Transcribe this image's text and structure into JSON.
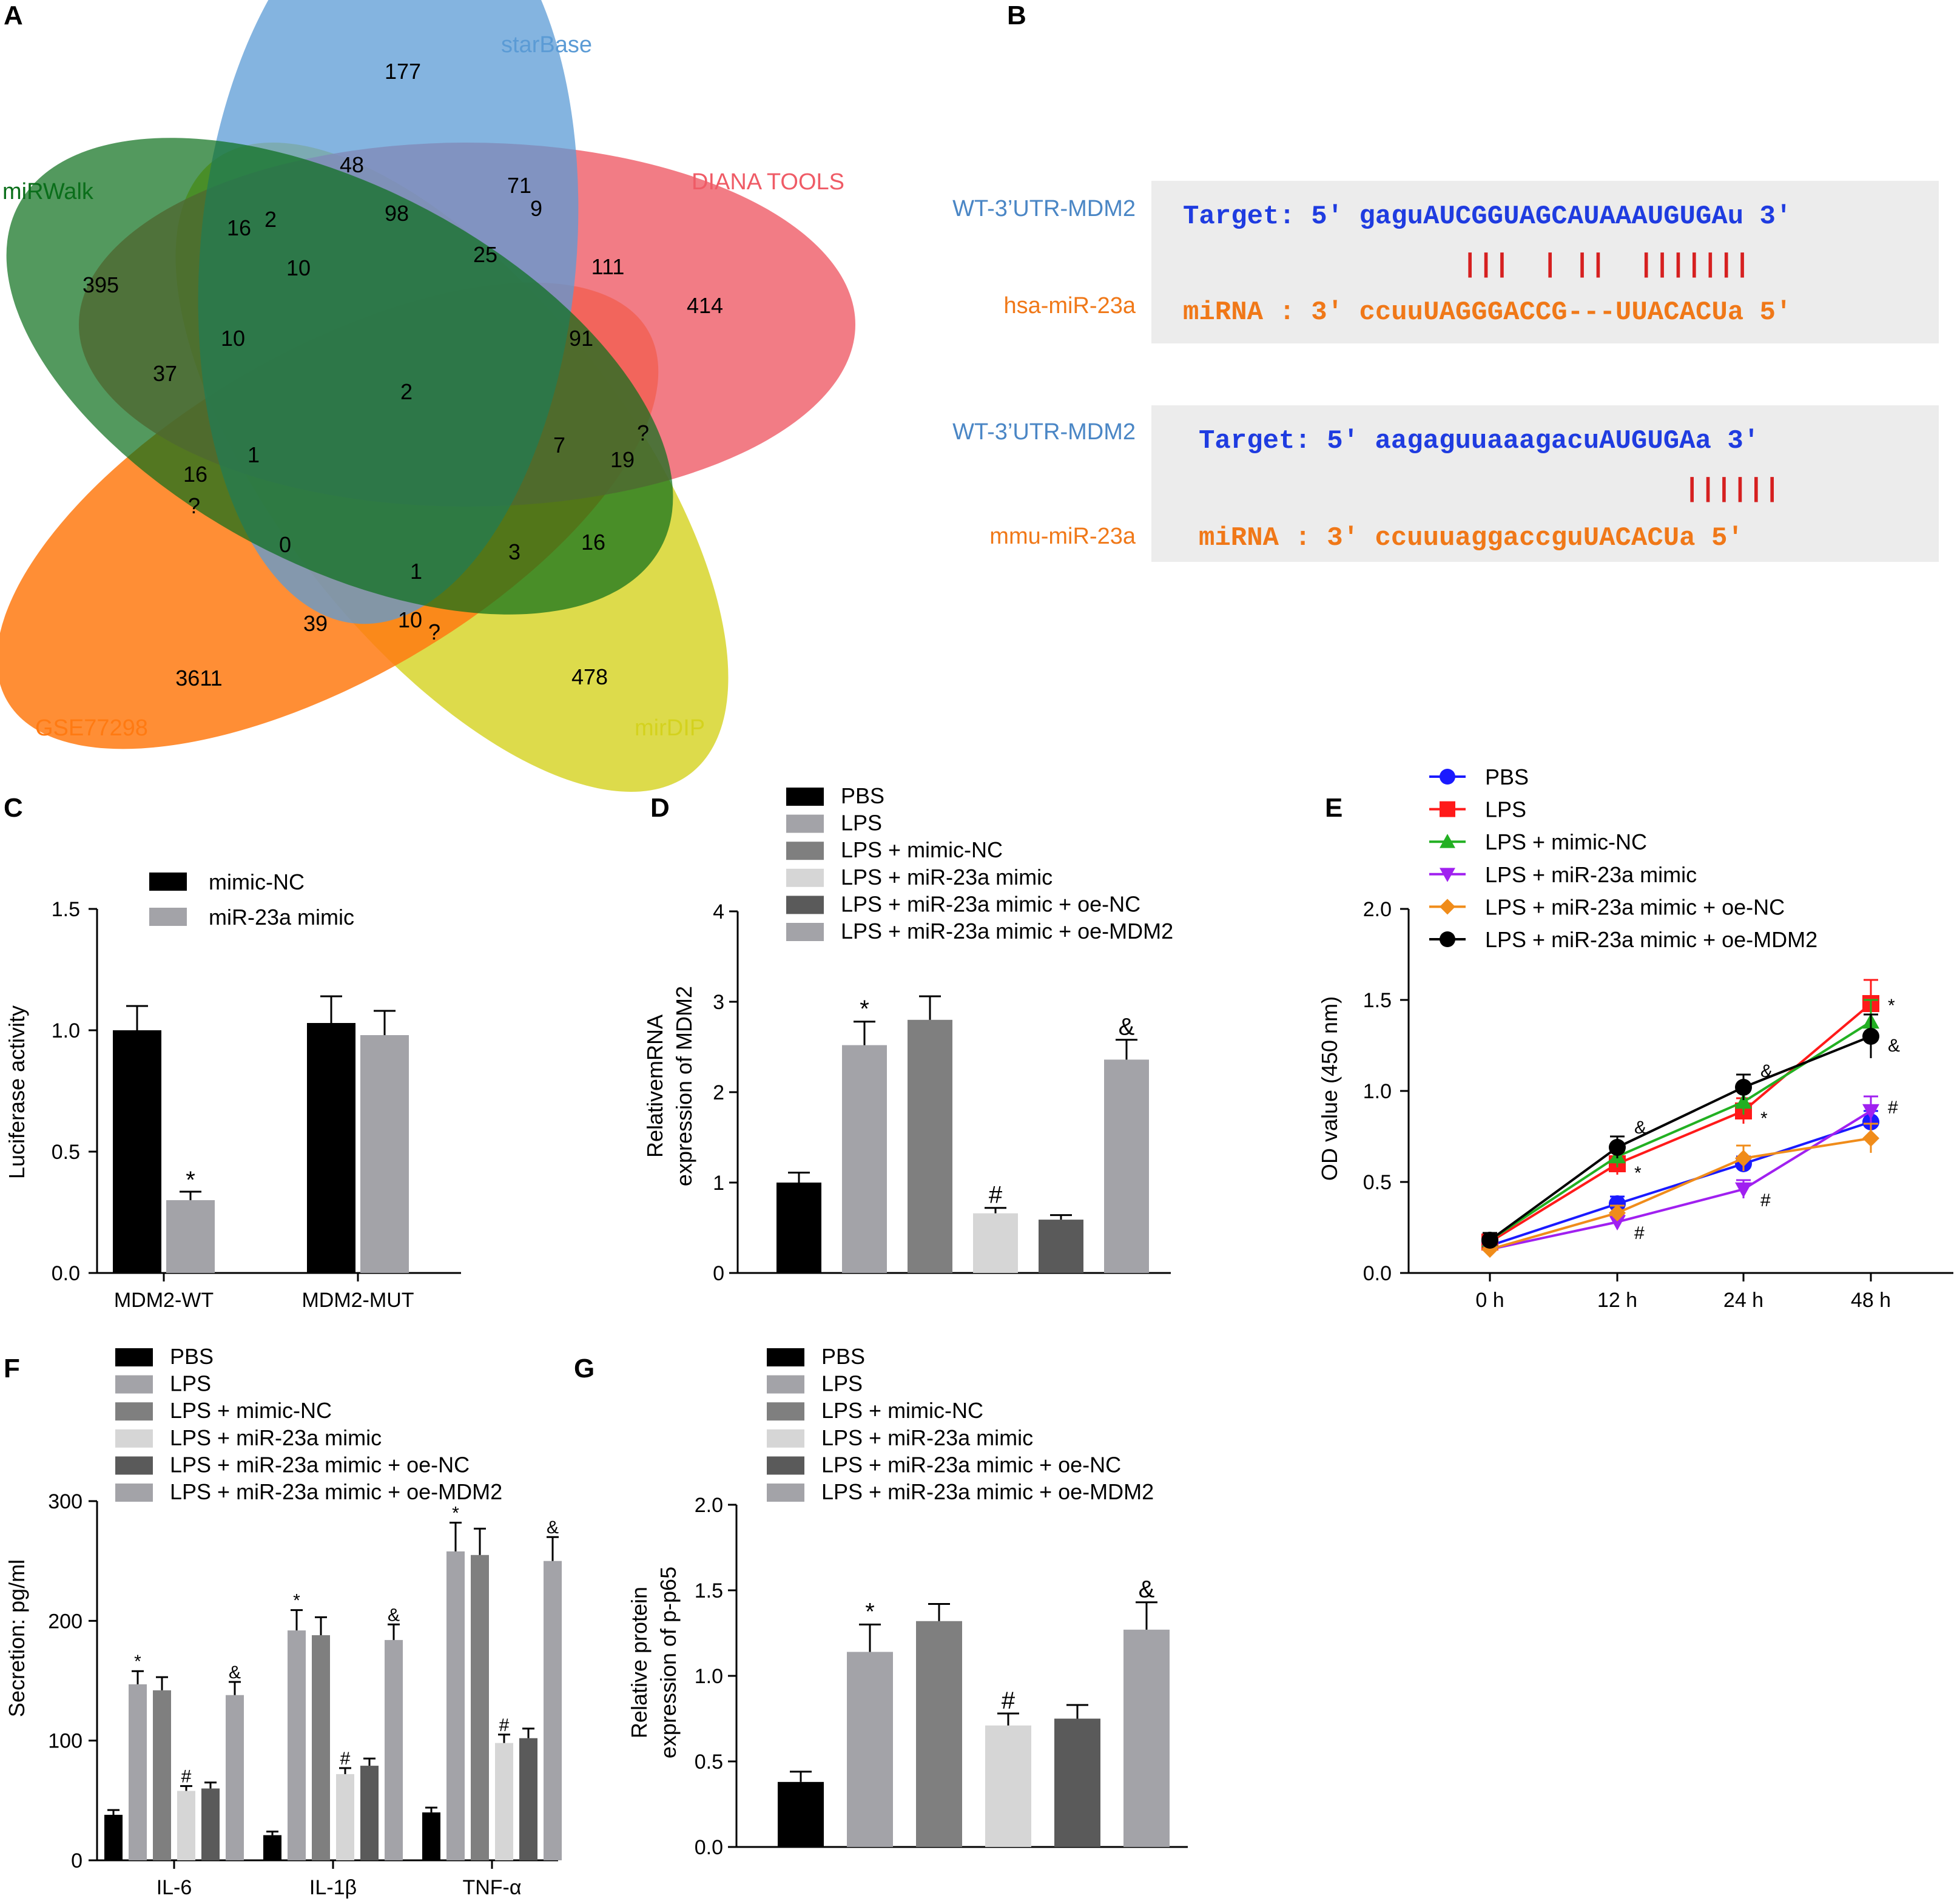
{
  "panels": {
    "A": "A",
    "B": "B",
    "C": "C",
    "D": "D",
    "E": "E",
    "F": "F",
    "G": "G"
  },
  "colors": {
    "starbase": "#5b9bd5",
    "diana": "#ef5b66",
    "mirwalk": "#0a6e1a",
    "gse": "#ff7a12",
    "mirdip": "#d4d21e",
    "target_seq": "#1f3ce0",
    "mirna_seq": "#f07818",
    "pair": "#d62020",
    "hsa_label": "#f07818",
    "wt_label": "#4a86c5",
    "pbs_bar": "#000000",
    "lps_bar": "#a3a3a8",
    "mimicnc_bar": "#7f7f7f",
    "mimic_bar": "#d6d6d6",
    "oenc_bar": "#5a5a5a",
    "oemdm2_bar": "#a3a3a8"
  },
  "venn": {
    "labels": {
      "starbase": "starBase",
      "diana": "DIANA TOOLS",
      "mirwalk": "miRWalk",
      "gse": "GSE77298",
      "mirdip": "mirDIP"
    },
    "numbers": [
      "177",
      "48",
      "71",
      "9",
      "98",
      "25",
      "111",
      "414",
      "16",
      "2",
      "10",
      "395",
      "10",
      "91",
      "37",
      "2",
      "7",
      "?",
      "19",
      "1",
      "16",
      "?",
      "0",
      "1",
      "3",
      "16",
      "39",
      "10",
      "?",
      "3611",
      "478"
    ]
  },
  "sequences": {
    "block1": {
      "wt_label": "WT-3’UTR-MDM2",
      "mir_label": "hsa-miR-23a",
      "target": "Target: 5' gaguAUCGGUAGCAUAAAUGUGAu 3'",
      "pairs": "|||  | ||  |||||||",
      "mirna": "miRNA : 3' ccuuUAGGGACCG---UUACACUa 5'"
    },
    "block2": {
      "wt_label": "WT-3’UTR-MDM2",
      "mir_label": "mmu-miR-23a",
      "target": "Target: 5' aagaguuaaagacuAUGUGAa 3'",
      "pairs": "||||||",
      "mirna": "miRNA : 3' ccuuuaggaccguUACACUa 5'"
    }
  },
  "six_group_legend": [
    "PBS",
    "LPS",
    "LPS + mimic-NC",
    "LPS + miR-23a mimic",
    "LPS + miR-23a mimic + oe-NC",
    "LPS + miR-23a mimic + oe-MDM2"
  ],
  "chart_data": [
    {
      "panel": "C",
      "type": "bar",
      "title": "",
      "ylabel": "Luciferase activity",
      "ylim": [
        0,
        1.5
      ],
      "yticks": [
        "0.0",
        "0.5",
        "1.0",
        "1.5"
      ],
      "categories": [
        "MDM2-WT",
        "MDM2-MUT"
      ],
      "series": [
        {
          "name": "mimic-NC",
          "values": [
            1.0,
            1.03
          ],
          "errors": [
            0.1,
            0.11
          ]
        },
        {
          "name": "miR-23a mimic",
          "values": [
            0.3,
            0.98
          ],
          "errors": [
            0.035,
            0.1
          ]
        }
      ],
      "annotations": [
        {
          "category": 0,
          "series": 1,
          "text": "*"
        }
      ]
    },
    {
      "panel": "D",
      "type": "bar",
      "ylabel": "RelativemRNA expression of MDM2",
      "ylabel_lines": [
        "RelativemRNA",
        "expression of MDM2"
      ],
      "ylim": [
        0,
        4
      ],
      "yticks": [
        "0",
        "1",
        "2",
        "3",
        "4"
      ],
      "values": [
        1.0,
        2.52,
        2.8,
        0.66,
        0.59,
        2.36
      ],
      "errors": [
        0.11,
        0.26,
        0.26,
        0.06,
        0.05,
        0.22
      ],
      "annotations": [
        "",
        "*",
        "",
        "#",
        "",
        "&"
      ]
    },
    {
      "panel": "E",
      "type": "line",
      "ylabel": "OD value (450 nm)",
      "ylim": [
        0,
        2.0
      ],
      "yticks": [
        "0.0",
        "0.5",
        "1.0",
        "1.5",
        "2.0"
      ],
      "x": [
        "0 h",
        "12 h",
        "24 h",
        "48 h"
      ],
      "series": [
        {
          "name": "PBS",
          "color": "#1a1aff",
          "marker": "circle",
          "values": [
            0.15,
            0.38,
            0.6,
            0.83
          ],
          "errors": [
            0.04,
            0.04,
            0.04,
            0.06
          ]
        },
        {
          "name": "LPS",
          "color": "#ff1a1a",
          "marker": "square",
          "values": [
            0.17,
            0.6,
            0.89,
            1.48
          ],
          "errors": [
            0.04,
            0.06,
            0.07,
            0.13
          ]
        },
        {
          "name": "LPS + mimic-NC",
          "color": "#22b022",
          "marker": "triangle",
          "values": [
            0.18,
            0.64,
            0.94,
            1.38
          ],
          "errors": [
            0.04,
            0.06,
            0.07,
            0.12
          ]
        },
        {
          "name": "LPS + miR-23a mimic",
          "color": "#a020f0",
          "marker": "triangle-down",
          "values": [
            0.13,
            0.28,
            0.46,
            0.89
          ],
          "errors": [
            0.03,
            0.04,
            0.05,
            0.08
          ]
        },
        {
          "name": "LPS + miR-23a mimic + oe-NC",
          "color": "#f08c1a",
          "marker": "diamond",
          "values": [
            0.13,
            0.33,
            0.63,
            0.74
          ],
          "errors": [
            0.03,
            0.04,
            0.07,
            0.08
          ]
        },
        {
          "name": "LPS + miR-23a mimic + oe-MDM2",
          "color": "#000000",
          "marker": "circle",
          "values": [
            0.18,
            0.69,
            1.02,
            1.3
          ],
          "errors": [
            0.04,
            0.06,
            0.07,
            0.12
          ]
        }
      ],
      "annotations": [
        {
          "text": "*",
          "x": 1,
          "value": 0.55
        },
        {
          "text": "&",
          "x": 1,
          "value": 0.8
        },
        {
          "text": "#",
          "x": 1,
          "value": 0.22
        },
        {
          "text": "&",
          "x": 2,
          "value": 1.11
        },
        {
          "text": "*",
          "x": 2,
          "value": 0.85
        },
        {
          "text": "#",
          "x": 2,
          "value": 0.4
        },
        {
          "text": "*",
          "x": 3,
          "value": 1.47
        },
        {
          "text": "&",
          "x": 3,
          "value": 1.25
        },
        {
          "text": "#",
          "x": 3,
          "value": 0.91
        }
      ]
    },
    {
      "panel": "F",
      "type": "bar",
      "ylabel": "Secretion: pg/ml",
      "ylim": [
        0,
        300
      ],
      "yticks": [
        "0",
        "100",
        "200",
        "300"
      ],
      "categories": [
        "IL-6",
        "IL-1β",
        "TNF-α"
      ],
      "series": [
        {
          "name": "PBS",
          "values": [
            38,
            21,
            40
          ],
          "errors": [
            4,
            3,
            4
          ]
        },
        {
          "name": "LPS",
          "values": [
            147,
            192,
            258
          ],
          "errors": [
            11,
            17,
            24
          ]
        },
        {
          "name": "LPS + mimic-NC",
          "values": [
            142,
            188,
            255
          ],
          "errors": [
            11,
            15,
            22
          ]
        },
        {
          "name": "LPS + miR-23a mimic",
          "values": [
            58,
            72,
            98
          ],
          "errors": [
            4,
            5,
            7
          ]
        },
        {
          "name": "LPS + miR-23a mimic + oe-NC",
          "values": [
            60,
            79,
            102
          ],
          "errors": [
            5,
            6,
            8
          ]
        },
        {
          "name": "LPS + miR-23a mimic + oe-MDM2",
          "values": [
            138,
            184,
            250
          ],
          "errors": [
            11,
            13,
            20
          ]
        }
      ],
      "annotations": [
        {
          "category": 0,
          "series": 1,
          "text": "*"
        },
        {
          "category": 0,
          "series": 3,
          "text": "#"
        },
        {
          "category": 0,
          "series": 5,
          "text": "&"
        },
        {
          "category": 1,
          "series": 1,
          "text": "*"
        },
        {
          "category": 1,
          "series": 3,
          "text": "#"
        },
        {
          "category": 1,
          "series": 5,
          "text": "&"
        },
        {
          "category": 2,
          "series": 1,
          "text": "*"
        },
        {
          "category": 2,
          "series": 3,
          "text": "#"
        },
        {
          "category": 2,
          "series": 5,
          "text": "&"
        }
      ]
    },
    {
      "panel": "G",
      "type": "bar",
      "ylabel": "Relative protein expression of p-p65",
      "ylabel_lines": [
        "Relative protein",
        "expression of p-p65"
      ],
      "ylim": [
        0,
        2.0
      ],
      "yticks": [
        "0.0",
        "0.5",
        "1.0",
        "1.5",
        "2.0"
      ],
      "values": [
        0.38,
        1.14,
        1.32,
        0.71,
        0.75,
        1.27
      ],
      "errors": [
        0.06,
        0.16,
        0.1,
        0.07,
        0.08,
        0.16
      ],
      "annotations": [
        "",
        "*",
        "",
        "#",
        "",
        "&"
      ]
    }
  ]
}
